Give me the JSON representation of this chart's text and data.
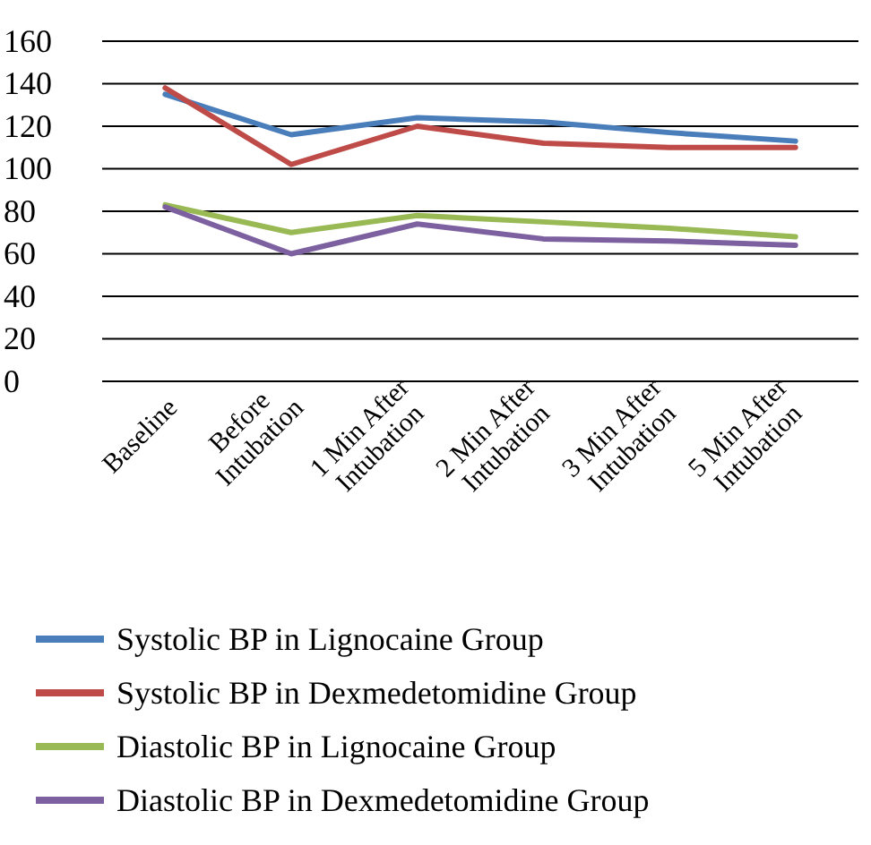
{
  "chart_data": {
    "type": "line",
    "categories": [
      "Baseline",
      "Before\nIntubation",
      "1 Min After\nIntubation",
      "2 Min After\nIntubation",
      "3 Min After\nIntubation",
      "5 Min After\nIntubation"
    ],
    "series": [
      {
        "name": "Systolic BP in Lignocaine Group",
        "color": "#4a7ebb",
        "values": [
          135,
          116,
          124,
          122,
          117,
          113
        ]
      },
      {
        "name": "Systolic BP in Dexmedetomidine Group",
        "color": "#be4b48",
        "values": [
          138,
          102,
          120,
          112,
          110,
          110
        ]
      },
      {
        "name": "Diastolic BP in Lignocaine Group",
        "color": "#98b954",
        "values": [
          83,
          70,
          78,
          75,
          72,
          68
        ]
      },
      {
        "name": "Diastolic BP in Dexmedetomidine Group",
        "color": "#7d60a0",
        "values": [
          82,
          60,
          74,
          67,
          66,
          64
        ]
      }
    ],
    "ylim": [
      0,
      160
    ],
    "yticks": [
      0,
      20,
      40,
      60,
      80,
      100,
      120,
      140,
      160
    ],
    "grid": "y",
    "legend": "bottom",
    "marker": "none",
    "line_style": "solid"
  }
}
